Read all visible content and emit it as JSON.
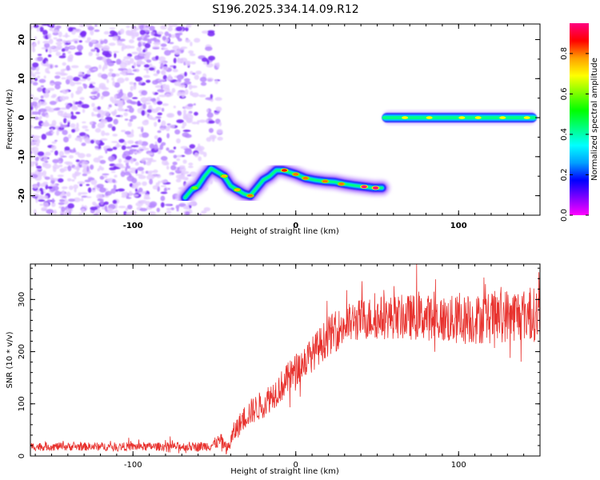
{
  "title": "S196.2025.334.14.09.R12",
  "chart_data": [
    {
      "type": "heatmap",
      "name": "spectrogram",
      "xlabel": "Height of straight line (km)",
      "ylabel": "Frequency (Hz)",
      "xlim": [
        -163,
        150
      ],
      "ylim": [
        -25,
        24
      ],
      "xticks": [
        -100,
        0,
        100
      ],
      "yticks": [
        -20,
        -10,
        0,
        10,
        20
      ],
      "colorbar": {
        "label": "Normalized spectral amplitude",
        "range": [
          0,
          0.95
        ],
        "ticks": [
          0.0,
          0.2,
          0.4,
          0.6,
          0.8
        ],
        "tick_labels": [
          "0.0",
          "0.2",
          "0.4",
          "0.6",
          "0.8"
        ],
        "colormap": [
          "#ff00ff",
          "#8000ff",
          "#0000ff",
          "#00a0ff",
          "#00ffff",
          "#00ff80",
          "#00ff00",
          "#80ff00",
          "#ffff00",
          "#ffa000",
          "#ff0000",
          "#ff0080"
        ]
      },
      "noise_region": {
        "x": [
          -163,
          -52
        ],
        "y": [
          -25,
          24
        ],
        "amplitude": 0.15
      },
      "ridge": [
        {
          "x": -68,
          "y": -20.5
        },
        {
          "x": -64,
          "y": -18.5
        },
        {
          "x": -60,
          "y": -17.5
        },
        {
          "x": -56,
          "y": -15
        },
        {
          "x": -52,
          "y": -13
        },
        {
          "x": -48,
          "y": -14
        },
        {
          "x": -44,
          "y": -15
        },
        {
          "x": -40,
          "y": -17.5
        },
        {
          "x": -36,
          "y": -18.5
        },
        {
          "x": -32,
          "y": -19.5
        },
        {
          "x": -28,
          "y": -20
        },
        {
          "x": -24,
          "y": -18
        },
        {
          "x": -20,
          "y": -16
        },
        {
          "x": -16,
          "y": -15
        },
        {
          "x": -12,
          "y": -13.5
        },
        {
          "x": -8,
          "y": -13.5
        },
        {
          "x": -4,
          "y": -14
        },
        {
          "x": 0,
          "y": -14.5
        },
        {
          "x": 6,
          "y": -15.5
        },
        {
          "x": 12,
          "y": -16
        },
        {
          "x": 18,
          "y": -16.3
        },
        {
          "x": 24,
          "y": -16.5
        },
        {
          "x": 30,
          "y": -17
        },
        {
          "x": 36,
          "y": -17.4
        },
        {
          "x": 42,
          "y": -17.7
        },
        {
          "x": 48,
          "y": -18
        },
        {
          "x": 53,
          "y": -18
        }
      ],
      "ridge_peaks": [
        {
          "x": -62,
          "y": -18,
          "amp": 0.6
        },
        {
          "x": -44,
          "y": -15,
          "amp": 0.75
        },
        {
          "x": -36,
          "y": -18.5,
          "amp": 0.75
        },
        {
          "x": -28,
          "y": -20,
          "amp": 0.8
        },
        {
          "x": -7,
          "y": -13.5,
          "amp": 0.85
        },
        {
          "x": 0,
          "y": -14.5,
          "amp": 0.8
        },
        {
          "x": 6,
          "y": -15.5,
          "amp": 0.8
        },
        {
          "x": 18,
          "y": -16.3,
          "amp": 0.8
        },
        {
          "x": 28,
          "y": -17,
          "amp": 0.8
        },
        {
          "x": 42,
          "y": -17.7,
          "amp": 0.95
        },
        {
          "x": 49,
          "y": -18,
          "amp": 0.95
        }
      ],
      "flat_band": {
        "x": [
          53,
          148
        ],
        "y": 0,
        "amp": 0.75,
        "peaks": [
          67,
          82,
          102,
          112,
          127,
          142
        ]
      }
    },
    {
      "type": "line",
      "name": "snr",
      "xlabel": "Height of straight line (km)",
      "ylabel": "SNR (10 * v/v)",
      "xlim": [
        -163,
        150
      ],
      "ylim": [
        0,
        368
      ],
      "xticks": [
        -100,
        0,
        100
      ],
      "yticks": [
        0,
        100,
        200,
        300
      ],
      "color": "#e8322e",
      "series": [
        {
          "name": "SNR",
          "x": [
            -163,
            -140,
            -120,
            -100,
            -80,
            -60,
            -52,
            -46,
            -42,
            -38,
            -30,
            -20,
            -10,
            0,
            10,
            20,
            30,
            40,
            50,
            60,
            70,
            80,
            90,
            100,
            110,
            120,
            130,
            140,
            150
          ],
          "values": [
            18,
            18,
            18,
            18,
            18,
            18,
            20,
            30,
            12,
            45,
            80,
            100,
            130,
            165,
            195,
            230,
            250,
            262,
            265,
            266,
            266,
            266,
            262,
            260,
            262,
            265,
            270,
            272,
            270
          ]
        }
      ],
      "noise_amplitude": [
        8,
        8,
        8,
        8,
        8,
        9,
        10,
        14,
        12,
        20,
        25,
        28,
        30,
        32,
        34,
        38,
        40,
        40,
        42,
        42,
        44,
        44,
        46,
        48,
        48,
        50,
        52,
        52,
        52
      ]
    }
  ]
}
